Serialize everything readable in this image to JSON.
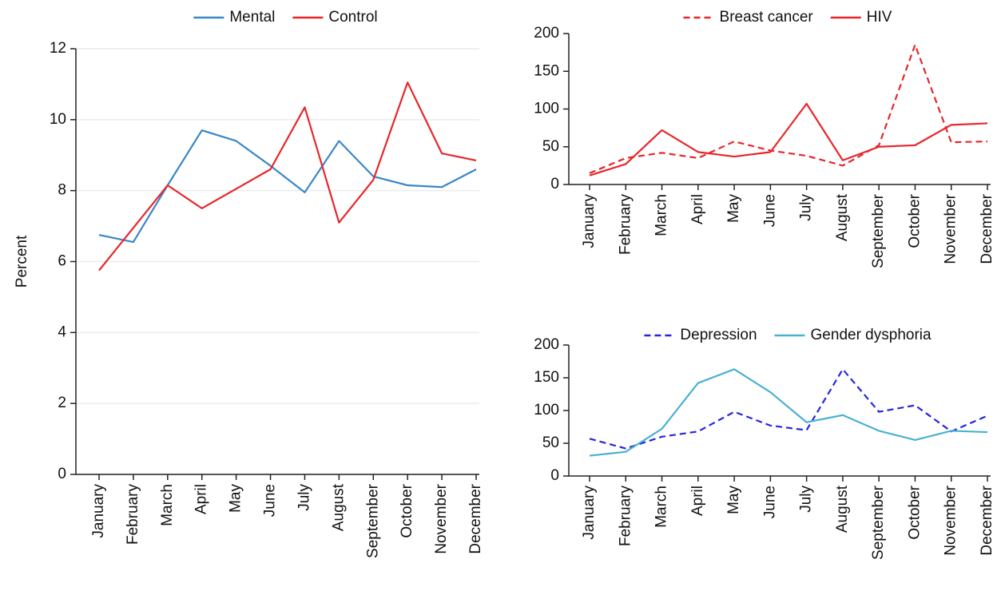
{
  "chart_data": [
    {
      "type": "line",
      "ylabel": "Percent",
      "categories": [
        "January",
        "February",
        "March",
        "April",
        "May",
        "June",
        "July",
        "August",
        "September",
        "October",
        "November",
        "December"
      ],
      "series": [
        {
          "name": "Mental",
          "color": "#3a87c8",
          "values": [
            6.75,
            6.55,
            8.15,
            9.7,
            9.4,
            8.7,
            7.95,
            9.4,
            8.4,
            8.15,
            8.1,
            8.6
          ]
        },
        {
          "name": "Control",
          "color": "#e8262b",
          "values": [
            5.75,
            6.95,
            8.15,
            7.5,
            8.05,
            8.6,
            10.35,
            7.1,
            8.3,
            11.05,
            9.05,
            8.85
          ]
        }
      ],
      "ylim": [
        0,
        12
      ],
      "yticks": [
        0,
        2,
        4,
        6,
        8,
        10,
        12
      ],
      "grid": true
    },
    {
      "type": "line",
      "categories": [
        "January",
        "February",
        "March",
        "April",
        "May",
        "June",
        "July",
        "August",
        "September",
        "October",
        "November",
        "December"
      ],
      "series": [
        {
          "name": "Breast cancer",
          "color": "#e8262b",
          "dashed": true,
          "values": [
            15,
            35,
            42,
            35,
            57,
            45,
            38,
            25,
            52,
            185,
            56,
            57
          ]
        },
        {
          "name": "HIV",
          "color": "#e8262b",
          "values": [
            12,
            27,
            72,
            43,
            37,
            43,
            107,
            32,
            50,
            52,
            79,
            81
          ]
        }
      ],
      "ylim": [
        0,
        200
      ],
      "yticks": [
        0,
        50,
        100,
        150,
        200
      ],
      "grid": false
    },
    {
      "type": "line",
      "categories": [
        "January",
        "February",
        "March",
        "April",
        "May",
        "June",
        "July",
        "August",
        "September",
        "October",
        "November",
        "December"
      ],
      "series": [
        {
          "name": "Depression",
          "color": "#2626e0",
          "dashed": true,
          "values": [
            57,
            42,
            60,
            68,
            98,
            77,
            70,
            163,
            98,
            108,
            68,
            92
          ]
        },
        {
          "name": "Gender dysphoria",
          "color": "#4ab2cf",
          "values": [
            31,
            37,
            72,
            142,
            163,
            128,
            82,
            93,
            69,
            55,
            69,
            67
          ]
        }
      ],
      "ylim": [
        0,
        200
      ],
      "yticks": [
        0,
        50,
        100,
        150,
        200
      ],
      "grid": false
    }
  ]
}
